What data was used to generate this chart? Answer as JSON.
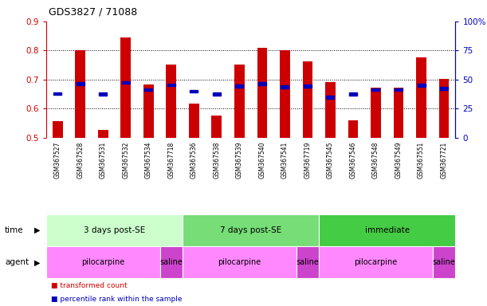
{
  "title": "GDS3827 / 71088",
  "samples": [
    "GSM367527",
    "GSM367528",
    "GSM367531",
    "GSM367532",
    "GSM367534",
    "GSM367718",
    "GSM367536",
    "GSM367538",
    "GSM367539",
    "GSM367540",
    "GSM367541",
    "GSM367719",
    "GSM367545",
    "GSM367546",
    "GSM367548",
    "GSM367549",
    "GSM367551",
    "GSM367721"
  ],
  "red_values": [
    0.558,
    0.8,
    0.527,
    0.845,
    0.683,
    0.752,
    0.618,
    0.577,
    0.752,
    0.808,
    0.8,
    0.762,
    0.692,
    0.56,
    0.672,
    0.672,
    0.775,
    0.703
  ],
  "blue_values": [
    0.652,
    0.685,
    0.65,
    0.69,
    0.665,
    0.682,
    0.66,
    0.65,
    0.678,
    0.685,
    0.675,
    0.678,
    0.64,
    0.65,
    0.665,
    0.665,
    0.68,
    0.67
  ],
  "ylim_left": [
    0.5,
    0.9
  ],
  "ylim_right": [
    0,
    100
  ],
  "bar_color": "#cc0000",
  "square_color": "#0000bb",
  "bg_color": "#ffffff",
  "tick_color_left": "#cc0000",
  "tick_color_right": "#0000bb",
  "label_bg_color": "#dddddd",
  "time_groups": [
    {
      "label": "3 days post-SE",
      "start": 0,
      "end": 6,
      "color": "#ccffcc"
    },
    {
      "label": "7 days post-SE",
      "start": 6,
      "end": 12,
      "color": "#77dd77"
    },
    {
      "label": "immediate",
      "start": 12,
      "end": 18,
      "color": "#44cc44"
    }
  ],
  "agent_groups": [
    {
      "label": "pilocarpine",
      "start": 0,
      "end": 5,
      "color": "#ff88ff"
    },
    {
      "label": "saline",
      "start": 5,
      "end": 6,
      "color": "#cc44cc"
    },
    {
      "label": "pilocarpine",
      "start": 6,
      "end": 11,
      "color": "#ff88ff"
    },
    {
      "label": "saline",
      "start": 11,
      "end": 12,
      "color": "#cc44cc"
    },
    {
      "label": "pilocarpine",
      "start": 12,
      "end": 17,
      "color": "#ff88ff"
    },
    {
      "label": "saline",
      "start": 17,
      "end": 18,
      "color": "#cc44cc"
    }
  ],
  "legend_items": [
    {
      "label": "transformed count",
      "color": "#cc0000"
    },
    {
      "label": "percentile rank within the sample",
      "color": "#0000bb"
    }
  ]
}
